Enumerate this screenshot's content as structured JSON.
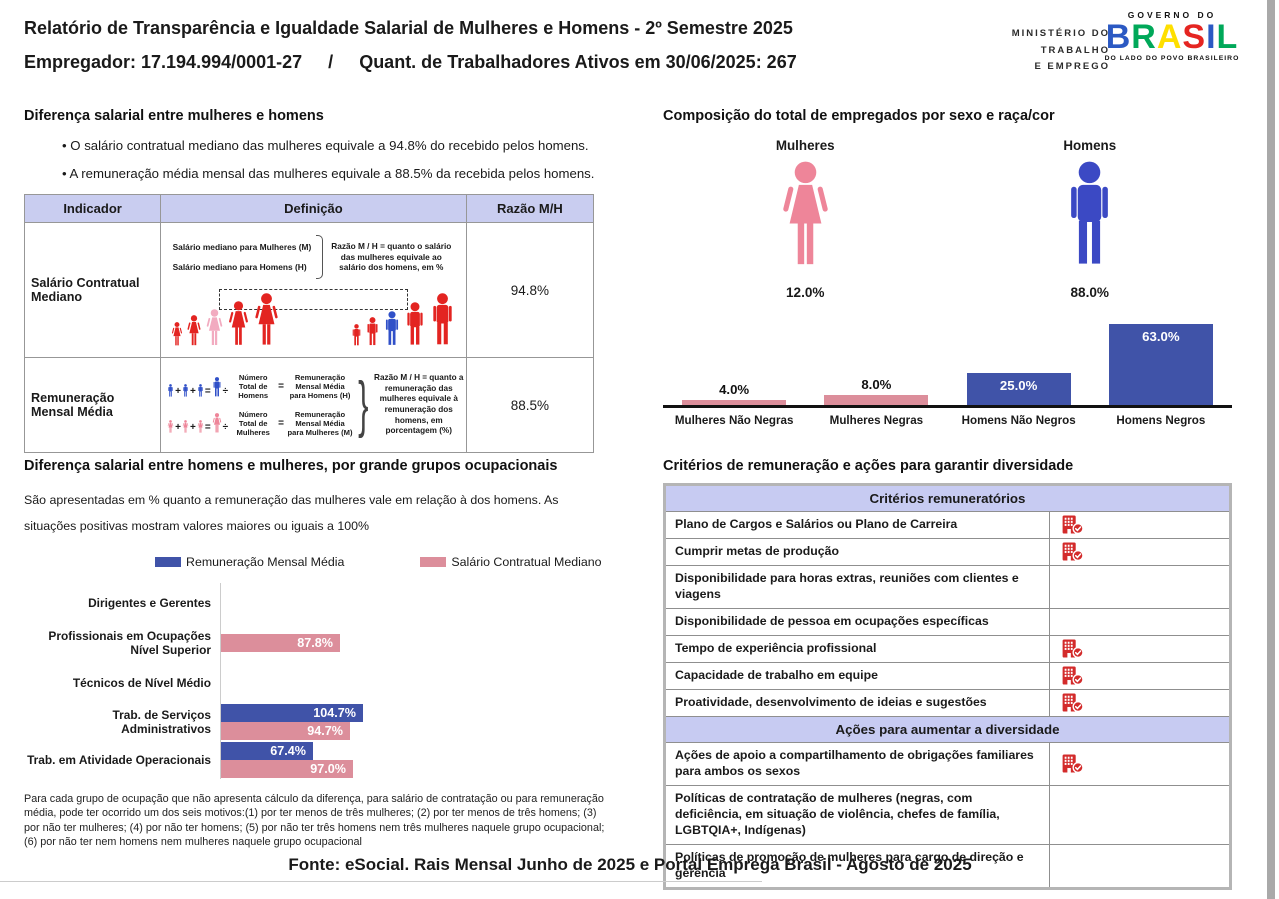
{
  "header": {
    "title": "Relatório de Transparência e Igualdade Salarial de Mulheres e Homens - 2º Semestre 2025",
    "employer": "Empregador: 17.194.994/0001-27",
    "separator": "/",
    "workers": "Quant. de Trabalhadores Ativos em 30/06/2025: 267",
    "ministry": [
      "MINISTÉRIO DO",
      "TRABALHO",
      "E EMPREGO"
    ],
    "gov": {
      "top": "GOVERNO DO",
      "name": "BRASIL",
      "tagline": "DO LADO DO POVO BRASILEIRO"
    }
  },
  "ops": {
    "plus": "+",
    "equals": "=",
    "divide": "÷"
  },
  "salary_gap": {
    "title": "Diferença salarial entre mulheres e homens",
    "bullets": [
      "• O salário contratual mediano das mulheres equivale a 94.8% do recebido pelos homens.",
      "• A remuneração média mensal das mulheres equivale a 88.5% da recebida pelos homens."
    ],
    "headers": [
      "Indicador",
      "Definição",
      "Razão M/H"
    ],
    "row1": {
      "indicator": "Salário Contratual Mediano",
      "label_women": "Salário mediano para Mulheres (M)",
      "label_men": "Salário mediano para Homens (H)",
      "note": "Razão M / H = quanto o salário das mulheres equivale ao salário dos homens, em %",
      "ratio": "94.8%"
    },
    "row2": {
      "indicator": "Remuneração Mensal Média",
      "men_divisor": "Número Total de Homens",
      "men_result": "Remuneração Mensal Média para Homens (H)",
      "women_divisor": "Número Total de Mulheres",
      "women_result": "Remuneração Mensal Média para Mulheres (M)",
      "note": "Razão M / H = quanto a remuneração das mulheres equivale à remuneração dos homens, em porcentagem (%)",
      "ratio": "88.5%"
    }
  },
  "composition": {
    "title": "Composição do total de empregados por sexo e raça/cor",
    "groups": [
      {
        "label": "Mulheres",
        "value": "12.0%"
      },
      {
        "label": "Homens",
        "value": "88.0%"
      }
    ]
  },
  "occupational": {
    "title": "Diferença salarial entre homens e mulheres, por grande grupos ocupacionais",
    "description": "São apresentadas em % quanto a remuneração das mulheres vale em relação à dos homens. As situações positivas mostram valores maiores ou iguais a 100%",
    "footnote": "Para cada grupo de ocupação que não apresenta cálculo da diferença, para salário de contratação ou para remuneração média, pode ter ocorrido um dos seis motivos:(1) por ter menos de três mulheres; (2) por ter menos de três homens; (3) por não ter mulheres; (4) por não ter homens; (5) por não ter três homens nem três mulheres naquele grupo ocupacional; (6) por não ter nem homens nem mulheres naquele grupo ocupacional"
  },
  "criteria": {
    "title": "Critérios de remuneração e ações para garantir diversidade",
    "sections": [
      {
        "header": "Critérios remuneratórios",
        "rows": [
          {
            "text": "Plano de Cargos e Salários ou Plano de Carreira",
            "checked": true
          },
          {
            "text": "Cumprir metas de produção",
            "checked": true
          },
          {
            "text": "Disponibilidade para horas extras, reuniões com clientes e viagens",
            "checked": false
          },
          {
            "text": "Disponibilidade de pessoa em ocupações específicas",
            "checked": false
          },
          {
            "text": "Tempo de experiência profissional",
            "checked": true
          },
          {
            "text": "Capacidade de trabalho em equipe",
            "checked": true
          },
          {
            "text": "Proatividade, desenvolvimento de ideias e sugestões",
            "checked": true
          }
        ]
      },
      {
        "header": "Ações para aumentar a diversidade",
        "rows": [
          {
            "text": "Ações de apoio a compartilhamento de obrigações familiares para ambos os sexos",
            "checked": true
          },
          {
            "text": "Políticas de contratação de mulheres (negras, com deficiência, em situação de violência, chefes de família, LGBTQIA+, Indígenas)",
            "checked": false
          },
          {
            "text": "Políticas de promoção de mulheres para cargo de direção e gerência",
            "checked": false
          }
        ]
      }
    ]
  },
  "footer": "Fonte: eSocial. Rais Mensal Junho de 2025 e Portal Emprega Brasil - Agosto de 2025",
  "colors": {
    "pink_bar": "#dc8e9b",
    "blue_bar": "#4053a8",
    "pink_figure": "#ee8599",
    "blue_figure": "#3b49c4",
    "red_figure": "#e32421",
    "pink_light_figure": "#f2abc0",
    "blue_mid_figure": "#3050c8",
    "lavender": "#c9cdf0",
    "icon_red": "#d32b2b"
  },
  "chart_data": [
    {
      "type": "bar",
      "title": "Composição do total de empregados por sexo e raça/cor",
      "categories": [
        "Mulheres Não Negras",
        "Mulheres Negras",
        "Homens Não Negros",
        "Homens Negros"
      ],
      "values": [
        4.0,
        8.0,
        25.0,
        63.0
      ],
      "labels": [
        "4.0%",
        "8.0%",
        "25.0%",
        "63.0%"
      ],
      "colors": [
        "#dc8e9b",
        "#dc8e9b",
        "#4053a8",
        "#4053a8"
      ],
      "label_position": [
        "above",
        "above",
        "inside",
        "inside"
      ],
      "ylim": [
        0,
        65
      ],
      "unit": "%",
      "grid": false,
      "legend": "none"
    },
    {
      "type": "bar-horizontal",
      "title": "Diferença salarial entre homens e mulheres, por grande grupos ocupacionais",
      "categories": [
        "Dirigentes e Gerentes",
        "Profissionais em Ocupações Nível Superior",
        "Técnicos de Nível Médio",
        "Trab. de Serviços Administrativos",
        "Trab. em Atividade Operacionais"
      ],
      "series": [
        {
          "name": "Remuneração Mensal Média",
          "color": "#4053a8",
          "values": [
            null,
            null,
            null,
            104.7,
            67.4
          ],
          "labels": [
            null,
            null,
            null,
            "104.7%",
            "67.4%"
          ]
        },
        {
          "name": "Salário Contratual Mediano",
          "color": "#dc8e9b",
          "values": [
            null,
            87.8,
            null,
            94.7,
            97.0
          ],
          "labels": [
            null,
            "87.8%",
            null,
            "94.7%",
            "97.0%"
          ]
        }
      ],
      "xlim": [
        0,
        110
      ],
      "unit": "%",
      "grid": false,
      "legend": "top"
    }
  ]
}
